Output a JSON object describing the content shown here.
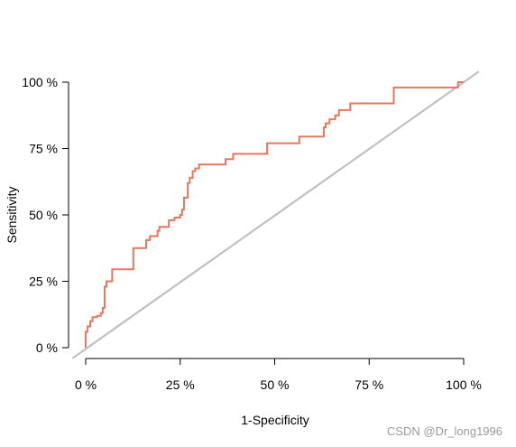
{
  "chart_data": {
    "type": "line",
    "xlabel": "1-Specificity",
    "ylabel": "Sensitivity",
    "xlim": [
      -0.035,
      1.04
    ],
    "ylim": [
      -0.04,
      1.04
    ],
    "x_ticks": [
      {
        "value": 0,
        "label": "0 %"
      },
      {
        "value": 0.25,
        "label": "25 %"
      },
      {
        "value": 0.5,
        "label": "50 %"
      },
      {
        "value": 0.75,
        "label": "75 %"
      },
      {
        "value": 1,
        "label": "100 %"
      }
    ],
    "y_ticks": [
      {
        "value": 0,
        "label": "0 %"
      },
      {
        "value": 0.25,
        "label": "25 %"
      },
      {
        "value": 0.5,
        "label": "50 %"
      },
      {
        "value": 0.75,
        "label": "75 %"
      },
      {
        "value": 1,
        "label": "100 %"
      }
    ],
    "grid": false,
    "series": [
      {
        "color": "#e8775f",
        "x": [
          0,
          0,
          0.005,
          0.005,
          0.012,
          0.012,
          0.018,
          0.018,
          0.03,
          0.03,
          0.04,
          0.04,
          0.045,
          0.045,
          0.05,
          0.05,
          0.055,
          0.055,
          0.07,
          0.07,
          0.126,
          0.126,
          0.16,
          0.16,
          0.17,
          0.17,
          0.19,
          0.19,
          0.195,
          0.195,
          0.22,
          0.22,
          0.235,
          0.235,
          0.25,
          0.25,
          0.255,
          0.255,
          0.26,
          0.26,
          0.27,
          0.27,
          0.275,
          0.275,
          0.283,
          0.283,
          0.29,
          0.29,
          0.3,
          0.3,
          0.37,
          0.37,
          0.39,
          0.39,
          0.48,
          0.48,
          0.565,
          0.565,
          0.63,
          0.63,
          0.635,
          0.635,
          0.645,
          0.645,
          0.66,
          0.66,
          0.67,
          0.67,
          0.7,
          0.7,
          0.815,
          0.815,
          0.985,
          0.985,
          1.0
        ],
        "y": [
          0,
          0.06,
          0.06,
          0.08,
          0.08,
          0.1,
          0.1,
          0.115,
          0.115,
          0.12,
          0.12,
          0.13,
          0.13,
          0.15,
          0.15,
          0.23,
          0.23,
          0.25,
          0.25,
          0.295,
          0.295,
          0.375,
          0.375,
          0.405,
          0.405,
          0.42,
          0.42,
          0.44,
          0.44,
          0.455,
          0.455,
          0.48,
          0.48,
          0.49,
          0.49,
          0.5,
          0.5,
          0.52,
          0.52,
          0.565,
          0.565,
          0.62,
          0.62,
          0.64,
          0.64,
          0.665,
          0.665,
          0.675,
          0.675,
          0.69,
          0.69,
          0.71,
          0.71,
          0.73,
          0.73,
          0.77,
          0.77,
          0.795,
          0.795,
          0.83,
          0.83,
          0.845,
          0.845,
          0.86,
          0.86,
          0.875,
          0.875,
          0.895,
          0.895,
          0.92,
          0.92,
          0.98,
          0.98,
          1.0,
          1.0
        ]
      }
    ],
    "reference_line": {
      "color": "#c0c0c0",
      "from": [
        -0.035,
        -0.04
      ],
      "to": [
        1.04,
        1.04
      ]
    }
  },
  "watermark": "CSDN @Dr_long1996"
}
